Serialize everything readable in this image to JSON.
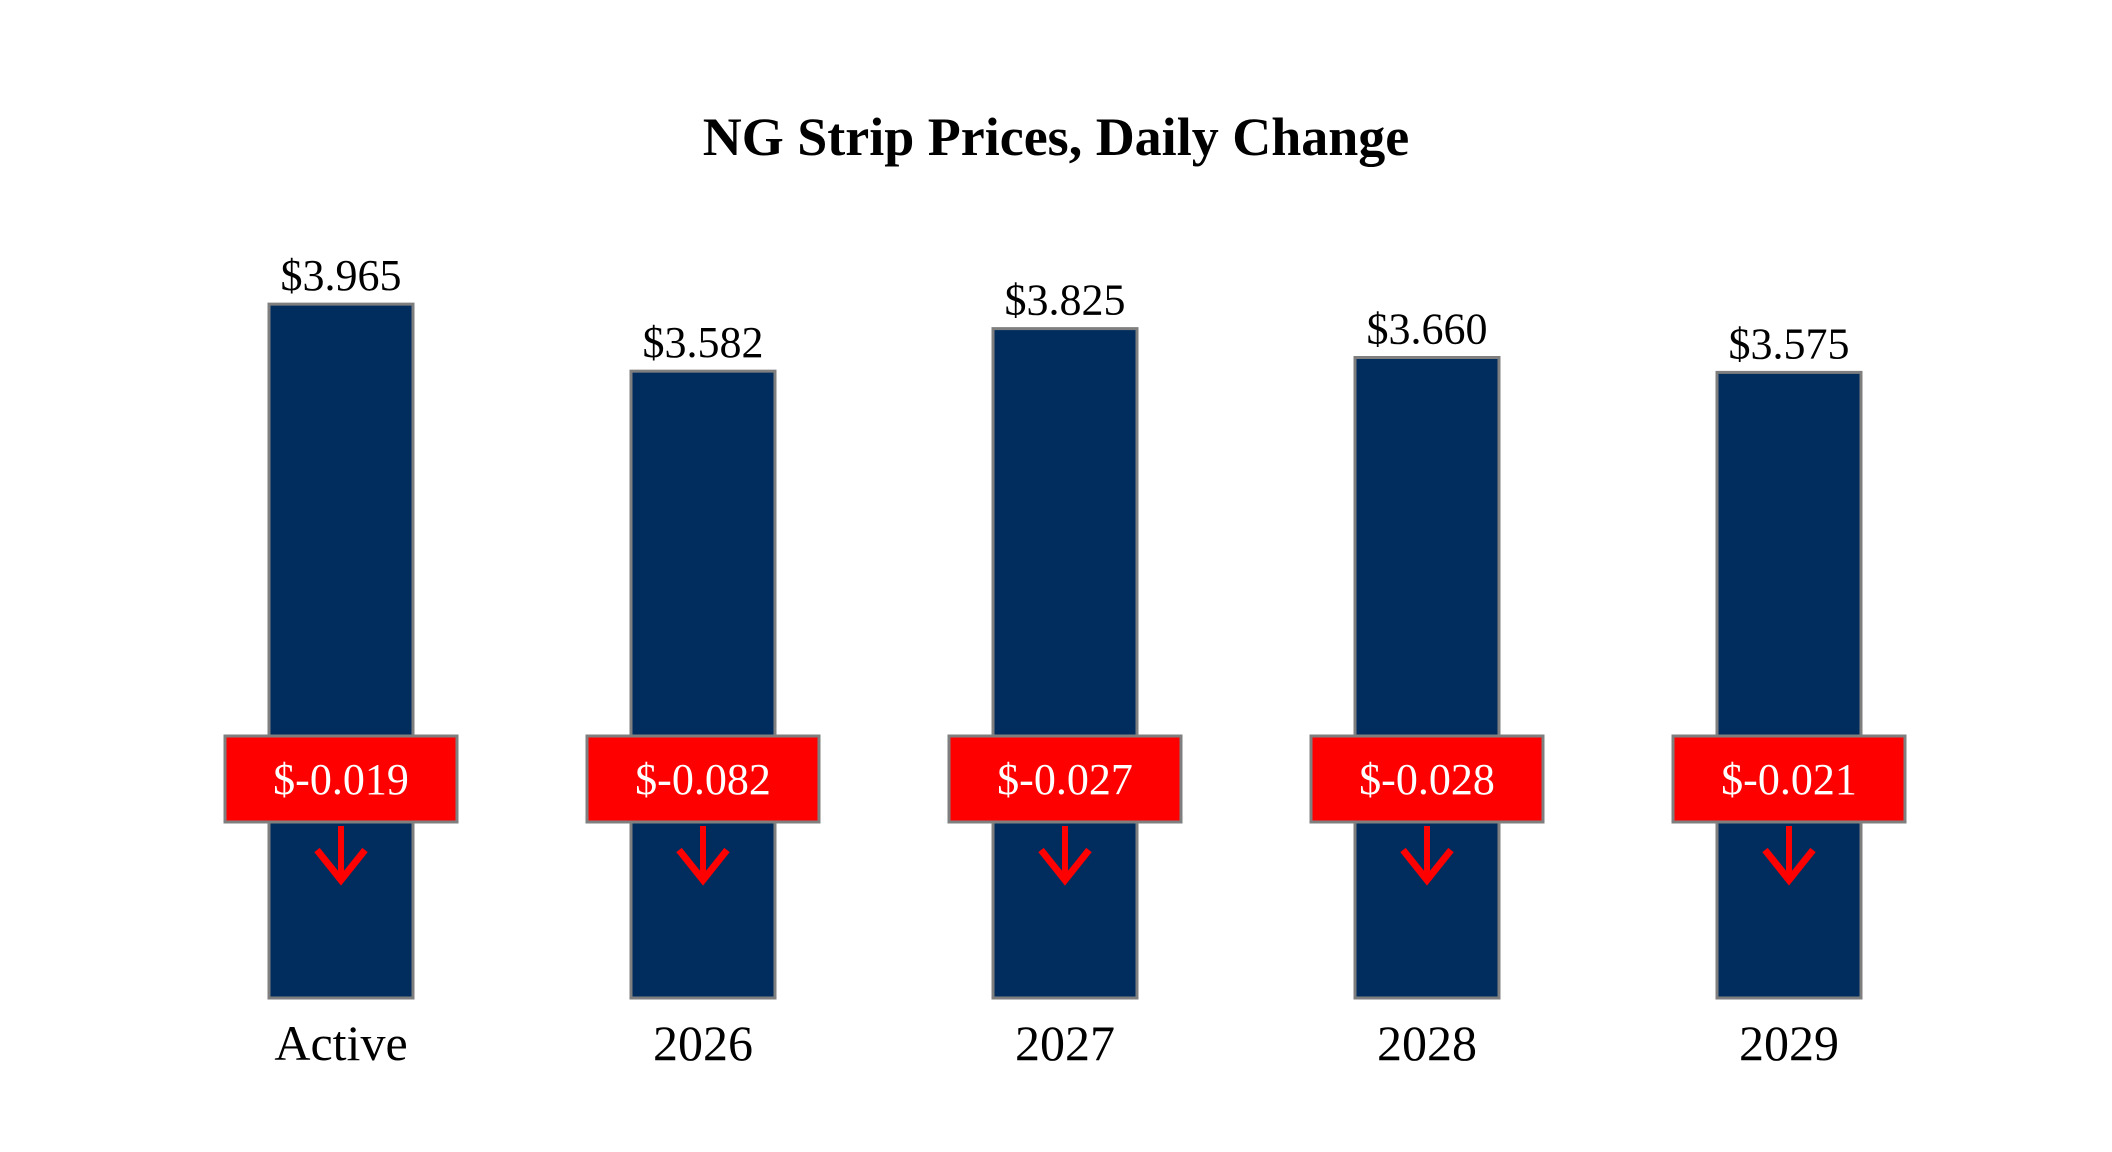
{
  "chart_data": {
    "type": "bar",
    "title": "NG Strip Prices, Daily Change",
    "xlabel": "",
    "ylabel": "",
    "categories": [
      "Active",
      "2026",
      "2027",
      "2028",
      "2029"
    ],
    "values": [
      3.965,
      3.582,
      3.825,
      3.66,
      3.575
    ],
    "value_labels": [
      "$3.965",
      "$3.582",
      "$3.825",
      "$3.660",
      "$3.575"
    ],
    "changes": [
      -0.019,
      -0.082,
      -0.027,
      -0.028,
      -0.021
    ],
    "change_labels": [
      "$-0.019",
      "$-0.082",
      "$-0.027",
      "$-0.028",
      "$-0.021"
    ],
    "change_direction": [
      "down",
      "down",
      "down",
      "down",
      "down"
    ],
    "ylim": [
      0,
      4.0
    ],
    "grid": false,
    "legend": "none"
  },
  "colors": {
    "bar": "#002D5E",
    "bar_border": "#7F7F7F",
    "change_box": "#FF0000",
    "change_border": "#7F7F7F",
    "arrow": "#FF0000"
  },
  "icons": {
    "change_arrow": "down-arrow-icon"
  }
}
